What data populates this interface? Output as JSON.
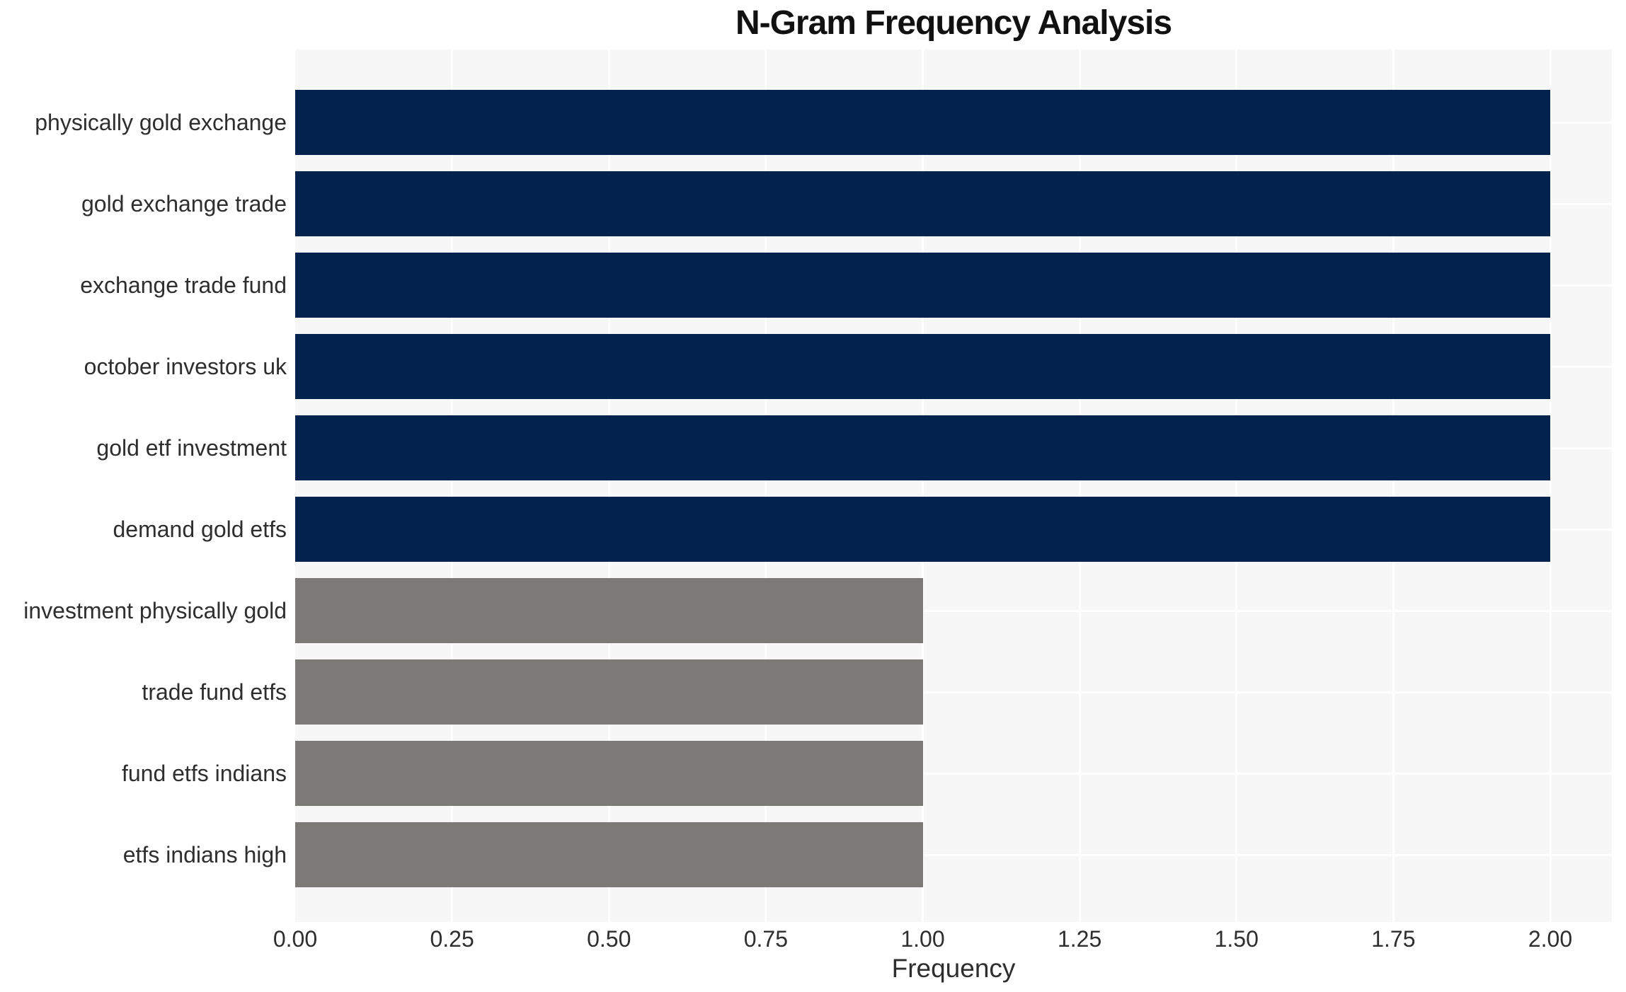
{
  "chart_data": {
    "type": "bar",
    "orientation": "horizontal",
    "title": "N-Gram Frequency Analysis",
    "xlabel": "Frequency",
    "ylabel": "",
    "categories": [
      "physically gold exchange",
      "gold exchange trade",
      "exchange trade fund",
      "october investors uk",
      "gold etf investment",
      "demand gold etfs",
      "investment physically gold",
      "trade fund etfs",
      "fund etfs indians",
      "etfs indians high"
    ],
    "values": [
      2,
      2,
      2,
      2,
      2,
      2,
      1,
      1,
      1,
      1
    ],
    "bar_colors": [
      "#02234d",
      "#02234d",
      "#02234d",
      "#02234d",
      "#02234d",
      "#02234d",
      "#7b7a77",
      "#7b7a77",
      "#7b7a77",
      "#7b7a77"
    ],
    "xlim": [
      0,
      2.1
    ],
    "xticks": [
      0,
      0.25,
      0.5,
      0.75,
      1,
      1.25,
      1.5,
      1.75,
      2
    ],
    "xtick_labels": [
      "0.00",
      "0.25",
      "0.50",
      "0.75",
      "1.00",
      "1.25",
      "1.50",
      "1.75",
      "2.00"
    ],
    "grid": true,
    "legend": false,
    "panel_bg": "#f7f7f7",
    "grid_color": "#ffffff",
    "text_color": "#2e2e2e",
    "title_color": "#111111"
  }
}
